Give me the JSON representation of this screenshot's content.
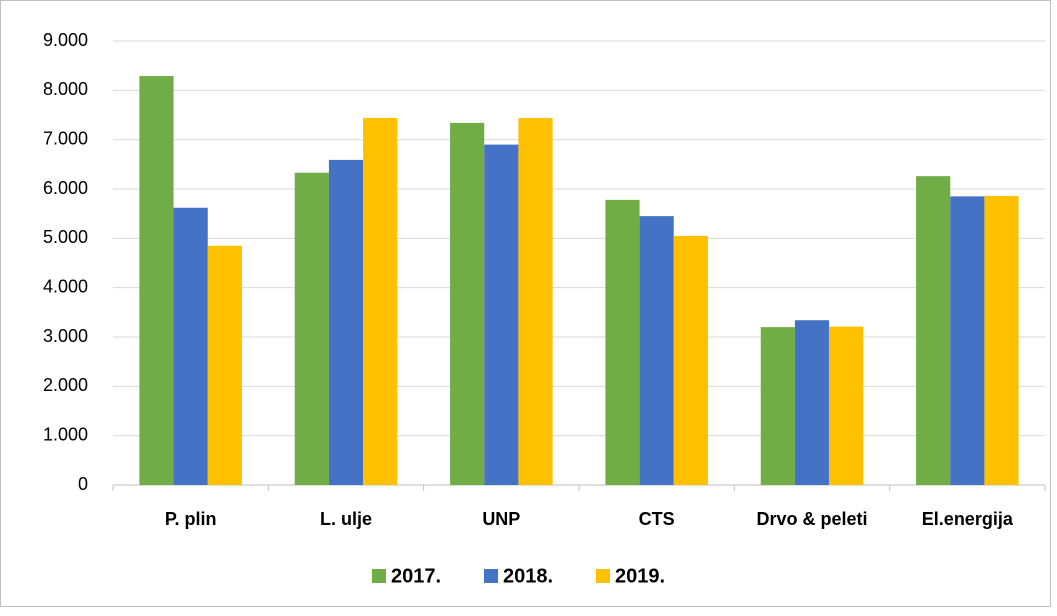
{
  "chart_data": {
    "type": "bar",
    "categories": [
      "P. plin",
      "L. ulje",
      "UNP",
      "CTS",
      "Drvo & peleti",
      "El.energija"
    ],
    "series": [
      {
        "name": "2017.",
        "color": "#70ad47",
        "values": [
          8290,
          6330,
          7340,
          5780,
          3200,
          6260
        ]
      },
      {
        "name": "2018.",
        "color": "#4472c4",
        "values": [
          5620,
          6590,
          6900,
          5450,
          3340,
          5850
        ]
      },
      {
        "name": "2019.",
        "color": "#ffc000",
        "values": [
          4850,
          7440,
          7440,
          5050,
          3210,
          5860
        ]
      }
    ],
    "ylim": [
      0,
      9000
    ],
    "yticks": [
      0,
      {
        "value": 1000,
        "label": "1.000"
      },
      {
        "value": 2000,
        "label": "2.000"
      },
      {
        "value": 3000,
        "label": "3.000"
      },
      {
        "value": 4000,
        "label": "4.000"
      },
      {
        "value": 5000,
        "label": "5.000"
      },
      {
        "value": 6000,
        "label": "6.000"
      },
      {
        "value": 7000,
        "label": "7.000"
      },
      {
        "value": 8000,
        "label": "8.000"
      },
      {
        "value": 9000,
        "label": "9.000"
      }
    ],
    "grid": true,
    "legend": "bottom"
  }
}
